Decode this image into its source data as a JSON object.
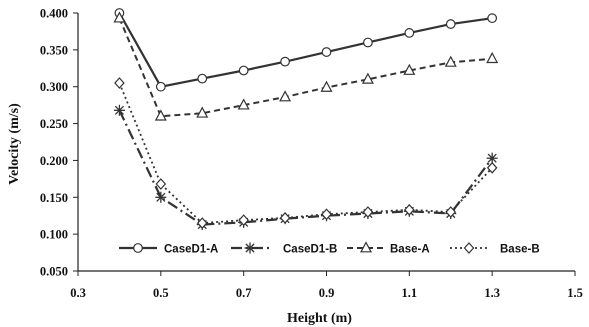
{
  "chart_data": {
    "type": "line",
    "xlabel": "Height (m)",
    "ylabel": "Velocity (m/s)",
    "xlim": [
      0.3,
      1.5
    ],
    "ylim": [
      0.05,
      0.4
    ],
    "xticks": [
      "0.3",
      "0.5",
      "0.7",
      "0.9",
      "1.1",
      "1.3",
      "1.5"
    ],
    "yticks": [
      "0.050",
      "0.100",
      "0.150",
      "0.200",
      "0.250",
      "0.300",
      "0.350",
      "0.400"
    ],
    "grid": false,
    "legend_position": "bottom inside plot",
    "x": [
      0.4,
      0.5,
      0.6,
      0.7,
      0.8,
      0.9,
      1.0,
      1.1,
      1.2,
      1.3
    ],
    "series": [
      {
        "name": "CaseD1-A",
        "marker": "circle",
        "line": "solid",
        "color": "#333333",
        "values": [
          0.4,
          0.3,
          0.311,
          0.322,
          0.334,
          0.347,
          0.36,
          0.373,
          0.385,
          0.393
        ]
      },
      {
        "name": "CaseD1-B",
        "marker": "star",
        "line": "dashdot",
        "color": "#333333",
        "values": [
          0.268,
          0.15,
          0.113,
          0.116,
          0.121,
          0.125,
          0.128,
          0.131,
          0.128,
          0.203
        ]
      },
      {
        "name": "Base-A",
        "marker": "triangle",
        "line": "dashed",
        "color": "#333333",
        "values": [
          0.393,
          0.26,
          0.264,
          0.275,
          0.286,
          0.299,
          0.31,
          0.322,
          0.333,
          0.338
        ]
      },
      {
        "name": "Base-B",
        "marker": "diamond",
        "line": "dotted",
        "color": "#333333",
        "values": [
          0.305,
          0.168,
          0.115,
          0.119,
          0.122,
          0.127,
          0.13,
          0.133,
          0.13,
          0.19
        ]
      }
    ]
  }
}
